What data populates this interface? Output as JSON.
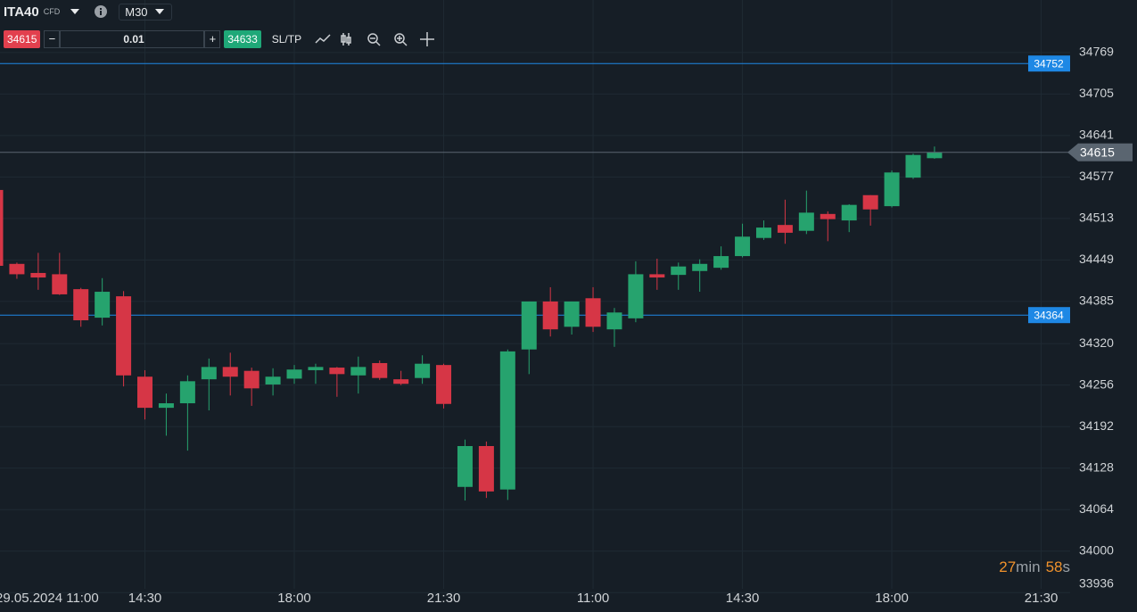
{
  "ui": {
    "symbol": "ITA40",
    "symbol_type": "CFD",
    "timeframe": "M30",
    "bid": 34615,
    "volume": "0.01",
    "ask": 34633,
    "sltp": "SL/TP",
    "countdown": {
      "minutes": "27",
      "min_unit": "min",
      "seconds": "58",
      "sec_unit": "s"
    }
  },
  "chart_data": {
    "type": "candlestick",
    "categories": [
      "29.05.2024 11:00",
      null,
      null,
      null,
      null,
      null,
      null,
      "14:30",
      null,
      null,
      null,
      null,
      null,
      null,
      "18:00",
      null,
      null,
      null,
      null,
      null,
      null,
      "21:30",
      null,
      null,
      null,
      null,
      null,
      null,
      "11:00",
      null,
      null,
      null,
      null,
      null,
      null,
      "14:30",
      null,
      null,
      null,
      null,
      null,
      null,
      "18:00",
      null,
      null,
      null,
      null,
      null,
      null,
      "21:30"
    ],
    "open": [
      34557,
      34443,
      34429,
      34427,
      34404,
      34360,
      34393,
      34269,
      34221,
      34228,
      34265,
      34284,
      34278,
      34257,
      34266,
      34279,
      34283,
      34271,
      34290,
      34265,
      34267,
      34287,
      34099,
      34162,
      34095,
      34311,
      34385,
      34346,
      34390,
      34342,
      34359,
      34427,
      34426,
      34432,
      34437,
      34455,
      34483,
      34503,
      34494,
      34520,
      34510,
      34549,
      34532,
      34576,
      34606,
      null,
      null,
      null,
      null,
      null
    ],
    "high": [
      34560,
      34445,
      34460,
      34460,
      34406,
      34421,
      34401,
      34279,
      34243,
      34271,
      34297,
      34306,
      34283,
      34282,
      34287,
      34289,
      34284,
      34300,
      34294,
      34278,
      34302,
      34289,
      34172,
      34169,
      34311,
      34385,
      34407,
      34385,
      34407,
      34375,
      34447,
      34451,
      34445,
      34450,
      34470,
      34505,
      34510,
      34542,
      34556,
      34524,
      34535,
      34549,
      34587,
      34613,
      34624,
      null,
      null,
      null,
      null,
      null
    ],
    "low": [
      34430,
      34420,
      34403,
      34395,
      34346,
      34348,
      34254,
      34203,
      34178,
      34155,
      34217,
      34240,
      34224,
      34240,
      34258,
      34258,
      34238,
      34243,
      34264,
      34256,
      34258,
      34220,
      34078,
      34082,
      34079,
      34273,
      34331,
      34334,
      34338,
      34315,
      34353,
      34403,
      34403,
      34400,
      34434,
      34453,
      34480,
      34474,
      34489,
      34478,
      34492,
      34502,
      34530,
      34574,
      34605,
      null,
      null,
      null,
      null,
      null
    ],
    "close": [
      34440,
      34427,
      34422,
      34396,
      34356,
      34400,
      34271,
      34221,
      34228,
      34262,
      34284,
      34269,
      34251,
      34269,
      34280,
      34284,
      34273,
      34284,
      34267,
      34258,
      34289,
      34227,
      34162,
      34092,
      34308,
      34385,
      34342,
      34385,
      34346,
      34368,
      34427,
      34422,
      34439,
      34443,
      34455,
      34485,
      34499,
      34491,
      34522,
      34512,
      34534,
      34527,
      34584,
      34611,
      34615,
      null,
      null,
      null,
      null,
      null
    ],
    "ylim": [
      33930,
      34850
    ],
    "yticks": [
      34769,
      34705,
      34641,
      34577,
      34513,
      34449,
      34385,
      34320,
      34256,
      34192,
      34128,
      34064,
      34000,
      33936
    ],
    "grid": true,
    "up_color": "#26a36e",
    "down_color": "#d63646",
    "price_lines": [
      {
        "value": 34752,
        "color": "#1e88e5"
      },
      {
        "value": 34364,
        "color": "#1e88e5"
      }
    ],
    "last_price": 34615,
    "last_price_color": "#5a6570"
  }
}
